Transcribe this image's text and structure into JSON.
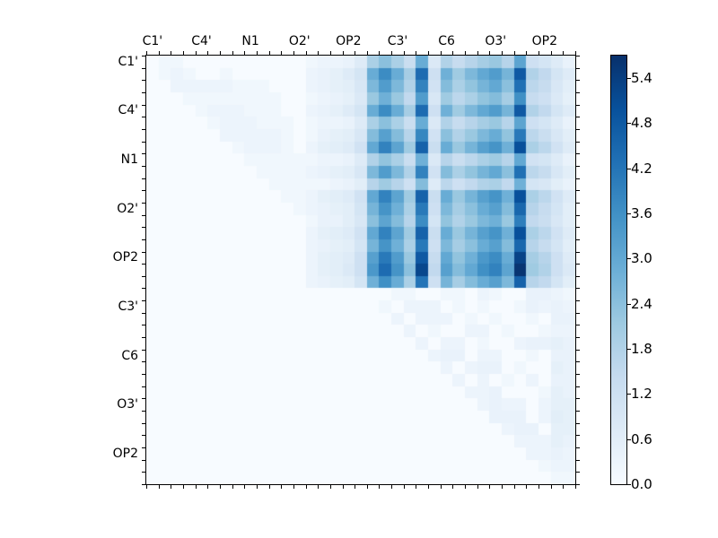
{
  "chart_data": {
    "type": "heatmap",
    "title": "",
    "x_axis_labels": [
      "C1'",
      "C4'",
      "N1",
      "O2'",
      "OP2",
      "C3'",
      "C6",
      "O3'",
      "OP2"
    ],
    "y_axis_labels": [
      "C1'",
      "C4'",
      "N1",
      "O2'",
      "OP2",
      "C3'",
      "C6",
      "O3'",
      "OP2"
    ],
    "label_cell_positions": [
      0,
      4,
      8,
      12,
      16,
      20,
      24,
      28,
      32
    ],
    "grid_size": 35,
    "vmin": 0.0,
    "vmax": 5.7,
    "colormap": "Blues",
    "grid": "off",
    "legend": "colorbar-right",
    "colorbar_ticks": [
      0.0,
      0.6,
      1.2,
      1.8,
      2.4,
      3.0,
      3.6,
      4.2,
      4.8,
      5.4
    ],
    "colorbar_tick_labels": [
      "0.0",
      "0.6",
      "1.2",
      "1.8",
      "2.4",
      "3.0",
      "3.6",
      "4.2",
      "4.8",
      "5.4"
    ],
    "matrix": [
      [
        0,
        0.2,
        0.2,
        0,
        0,
        0,
        0,
        0,
        0,
        0,
        0,
        0,
        0,
        0.2,
        0.3,
        0.3,
        0.4,
        0.7,
        1.9,
        2.4,
        1.9,
        1.3,
        2.9,
        0.8,
        1.8,
        1.4,
        1.7,
        2.0,
        2.2,
        1.7,
        3.1,
        1.2,
        1.0,
        0.7,
        0.4
      ],
      [
        0,
        0.2,
        0.3,
        0.2,
        0,
        0,
        0.2,
        0,
        0,
        0,
        0,
        0,
        0,
        0.3,
        0.4,
        0.5,
        0.7,
        1.0,
        2.9,
        3.7,
        2.9,
        2.0,
        4.4,
        1.2,
        2.8,
        2.1,
        2.6,
        3.0,
        3.3,
        2.7,
        4.8,
        1.8,
        1.5,
        1.0,
        0.7
      ],
      [
        0,
        0,
        0.3,
        0.3,
        0.3,
        0.3,
        0.3,
        0.2,
        0.2,
        0.2,
        0,
        0,
        0,
        0.3,
        0.4,
        0.5,
        0.6,
        0.9,
        2.6,
        3.3,
        2.6,
        1.8,
        3.9,
        1.1,
        2.5,
        1.9,
        2.3,
        2.7,
        3.0,
        2.4,
        4.3,
        1.6,
        1.4,
        0.9,
        0.6
      ],
      [
        0,
        0,
        0,
        0.2,
        0.2,
        0.2,
        0.2,
        0.2,
        0.2,
        0.2,
        0.2,
        0,
        0,
        0.2,
        0.3,
        0.4,
        0.5,
        0.8,
        2.2,
        2.8,
        2.2,
        1.5,
        3.3,
        0.9,
        2.1,
        1.6,
        1.9,
        2.3,
        2.5,
        2.0,
        3.6,
        1.4,
        1.2,
        0.8,
        0.5
      ],
      [
        0,
        0,
        0,
        0,
        0.2,
        0.3,
        0.3,
        0.3,
        0.2,
        0.2,
        0.2,
        0,
        0,
        0.3,
        0.4,
        0.5,
        0.7,
        1.0,
        2.9,
        3.7,
        2.9,
        2.0,
        4.4,
        1.2,
        2.8,
        2.1,
        2.6,
        3.0,
        3.3,
        2.7,
        4.8,
        1.8,
        1.5,
        1.0,
        0.7
      ],
      [
        0,
        0,
        0,
        0,
        0,
        0.2,
        0.3,
        0.3,
        0.3,
        0.2,
        0.2,
        0.2,
        0,
        0.2,
        0.3,
        0.3,
        0.4,
        0.7,
        1.9,
        2.4,
        1.9,
        1.3,
        2.9,
        0.8,
        1.8,
        1.4,
        1.7,
        2.0,
        2.2,
        1.7,
        3.1,
        1.2,
        1.0,
        0.7,
        0.4
      ],
      [
        0,
        0,
        0,
        0,
        0,
        0,
        0.3,
        0.3,
        0.3,
        0.3,
        0.3,
        0.2,
        0,
        0.2,
        0.4,
        0.5,
        0.6,
        0.9,
        2.5,
        3.2,
        2.5,
        1.7,
        3.8,
        1.1,
        2.4,
        1.8,
        2.2,
        2.6,
        2.9,
        2.3,
        4.1,
        1.6,
        1.3,
        0.9,
        0.6
      ],
      [
        0,
        0,
        0,
        0,
        0,
        0,
        0,
        0.2,
        0.3,
        0.3,
        0.3,
        0.2,
        0,
        0.3,
        0.5,
        0.6,
        0.7,
        1.1,
        3.0,
        3.9,
        3.1,
        2.1,
        4.6,
        1.3,
        2.9,
        2.2,
        2.7,
        3.2,
        3.5,
        2.8,
        5.0,
        1.9,
        1.6,
        1.1,
        0.7
      ],
      [
        0,
        0,
        0,
        0,
        0,
        0,
        0,
        0,
        0.2,
        0.2,
        0.2,
        0.2,
        0.2,
        0.2,
        0.3,
        0.3,
        0.4,
        0.7,
        1.8,
        2.3,
        1.9,
        1.3,
        2.8,
        0.8,
        1.7,
        1.3,
        1.6,
        1.9,
        2.1,
        1.7,
        3.0,
        1.1,
        1.0,
        0.7,
        0.4
      ],
      [
        0,
        0,
        0,
        0,
        0,
        0,
        0,
        0,
        0,
        0.2,
        0.2,
        0.2,
        0.2,
        0.3,
        0.4,
        0.5,
        0.6,
        0.9,
        2.6,
        3.3,
        2.6,
        1.8,
        3.9,
        1.1,
        2.5,
        1.9,
        2.3,
        2.7,
        3.0,
        2.4,
        4.3,
        1.6,
        1.4,
        0.9,
        0.6
      ],
      [
        0,
        0,
        0,
        0,
        0,
        0,
        0,
        0,
        0,
        0,
        0.2,
        0.2,
        0.2,
        0.2,
        0.2,
        0.3,
        0.4,
        0.6,
        1.7,
        2.1,
        1.7,
        1.2,
        2.5,
        0.7,
        1.6,
        1.2,
        1.5,
        1.8,
        1.9,
        1.5,
        2.8,
        1.0,
        0.9,
        0.6,
        0.4
      ],
      [
        0,
        0,
        0,
        0,
        0,
        0,
        0,
        0,
        0,
        0,
        0,
        0.2,
        0.2,
        0.3,
        0.5,
        0.6,
        0.7,
        1.1,
        3.0,
        3.9,
        3.1,
        2.1,
        4.6,
        1.3,
        2.9,
        2.2,
        2.7,
        3.2,
        3.5,
        2.8,
        5.0,
        1.9,
        1.6,
        1.1,
        0.7
      ],
      [
        0,
        0,
        0,
        0,
        0,
        0,
        0,
        0,
        0,
        0,
        0,
        0,
        0.2,
        0.3,
        0.4,
        0.5,
        0.6,
        1.0,
        2.7,
        3.5,
        2.8,
        1.9,
        4.1,
        1.2,
        2.6,
        2.0,
        2.4,
        2.9,
        3.2,
        2.5,
        4.5,
        1.7,
        1.4,
        1.0,
        0.6
      ],
      [
        0,
        0,
        0,
        0,
        0,
        0,
        0,
        0,
        0,
        0,
        0,
        0,
        0,
        0.2,
        0.4,
        0.4,
        0.6,
        0.9,
        2.4,
        3.1,
        2.5,
        1.7,
        3.7,
        1.0,
        2.3,
        1.8,
        2.2,
        2.6,
        2.8,
        2.2,
        4.0,
        1.5,
        1.3,
        0.9,
        0.6
      ],
      [
        0,
        0,
        0,
        0,
        0,
        0,
        0,
        0,
        0,
        0,
        0,
        0,
        0,
        0.3,
        0.5,
        0.6,
        0.7,
        1.1,
        3.0,
        3.9,
        3.1,
        2.1,
        4.6,
        1.3,
        2.9,
        2.2,
        2.7,
        3.2,
        3.5,
        2.8,
        5.0,
        1.9,
        1.6,
        1.1,
        0.7
      ],
      [
        0,
        0,
        0,
        0,
        0,
        0,
        0,
        0,
        0,
        0,
        0,
        0,
        0,
        0.3,
        0.4,
        0.5,
        0.6,
        1.0,
        2.7,
        3.5,
        2.8,
        1.9,
        4.1,
        1.2,
        2.6,
        2.0,
        2.4,
        2.9,
        3.2,
        2.5,
        4.5,
        1.7,
        1.4,
        1.0,
        0.6
      ],
      [
        0,
        0,
        0,
        0,
        0,
        0,
        0,
        0,
        0,
        0,
        0,
        0,
        0,
        0.3,
        0.5,
        0.6,
        0.7,
        1.2,
        3.2,
        4.1,
        3.3,
        2.2,
        4.8,
        1.4,
        3.0,
        2.3,
        2.8,
        3.4,
        3.7,
        2.9,
        5.3,
        2.0,
        1.7,
        1.2,
        0.7
      ],
      [
        0,
        0,
        0,
        0,
        0,
        0,
        0,
        0,
        0,
        0,
        0,
        0,
        0,
        0.3,
        0.5,
        0.6,
        0.8,
        1.2,
        3.4,
        4.4,
        3.5,
        2.4,
        5.2,
        1.5,
        3.2,
        2.5,
        3.0,
        3.6,
        3.9,
        3.1,
        5.6,
        2.1,
        1.8,
        1.2,
        0.8
      ],
      [
        0,
        0,
        0,
        0,
        0,
        0,
        0,
        0,
        0,
        0,
        0,
        0,
        0,
        0.3,
        0.4,
        0.5,
        0.6,
        1.0,
        2.8,
        3.6,
        2.9,
        1.9,
        4.2,
        1.2,
        2.7,
        2.0,
        2.5,
        2.9,
        3.2,
        2.6,
        4.6,
        1.7,
        1.5,
        1.0,
        0.6
      ],
      [
        0,
        0,
        0,
        0,
        0,
        0,
        0,
        0,
        0,
        0,
        0,
        0,
        0,
        0,
        0,
        0,
        0,
        0,
        0,
        0,
        0.2,
        0.2,
        0,
        0,
        0.2,
        0.2,
        0,
        0.3,
        0.2,
        0,
        0,
        0.4,
        0.4,
        0.3,
        0.2
      ],
      [
        0,
        0,
        0,
        0,
        0,
        0,
        0,
        0,
        0,
        0,
        0,
        0,
        0,
        0,
        0,
        0,
        0,
        0,
        0,
        0.2,
        0,
        0.3,
        0.3,
        0.3,
        0,
        0.2,
        0,
        0.2,
        0,
        0,
        0.2,
        0.4,
        0.3,
        0.4,
        0.3
      ],
      [
        0,
        0,
        0,
        0,
        0,
        0,
        0,
        0,
        0,
        0,
        0,
        0,
        0,
        0,
        0,
        0,
        0,
        0,
        0,
        0,
        0.3,
        0,
        0.3,
        0.3,
        0.3,
        0,
        0.2,
        0,
        0.2,
        0,
        0,
        0.2,
        0,
        0.4,
        0.4
      ],
      [
        0,
        0,
        0,
        0,
        0,
        0,
        0,
        0,
        0,
        0,
        0,
        0,
        0,
        0,
        0,
        0,
        0,
        0,
        0,
        0,
        0,
        0.3,
        0,
        0.2,
        0,
        0,
        0.3,
        0.3,
        0,
        0.2,
        0,
        0,
        0.2,
        0.3,
        0.3
      ],
      [
        0,
        0,
        0,
        0,
        0,
        0,
        0,
        0,
        0,
        0,
        0,
        0,
        0,
        0,
        0,
        0,
        0,
        0,
        0,
        0,
        0,
        0,
        0.3,
        0,
        0.3,
        0.3,
        0,
        0.2,
        0,
        0,
        0.3,
        0.4,
        0.4,
        0.5,
        0.4
      ],
      [
        0,
        0,
        0,
        0,
        0,
        0,
        0,
        0,
        0,
        0,
        0,
        0,
        0,
        0,
        0,
        0,
        0,
        0,
        0,
        0,
        0,
        0,
        0,
        0.3,
        0.4,
        0.4,
        0,
        0.3,
        0.3,
        0,
        0,
        0.2,
        0,
        0.4,
        0.4
      ],
      [
        0,
        0,
        0,
        0,
        0,
        0,
        0,
        0,
        0,
        0,
        0,
        0,
        0,
        0,
        0,
        0,
        0,
        0,
        0,
        0,
        0,
        0,
        0,
        0,
        0.3,
        0,
        0.3,
        0.4,
        0.4,
        0,
        0.2,
        0,
        0,
        0.5,
        0.4
      ],
      [
        0,
        0,
        0,
        0,
        0,
        0,
        0,
        0,
        0,
        0,
        0,
        0,
        0,
        0,
        0,
        0,
        0,
        0,
        0,
        0,
        0,
        0,
        0,
        0,
        0,
        0.3,
        0,
        0.3,
        0,
        0.2,
        0,
        0.3,
        0,
        0.4,
        0.4
      ],
      [
        0,
        0,
        0,
        0,
        0,
        0,
        0,
        0,
        0,
        0,
        0,
        0,
        0,
        0,
        0,
        0,
        0,
        0,
        0,
        0,
        0,
        0,
        0,
        0,
        0,
        0,
        0.3,
        0.3,
        0.4,
        0,
        0,
        0,
        0.2,
        0.5,
        0.4
      ],
      [
        0,
        0,
        0,
        0,
        0,
        0,
        0,
        0,
        0,
        0,
        0,
        0,
        0,
        0,
        0,
        0,
        0,
        0,
        0,
        0,
        0,
        0,
        0,
        0,
        0,
        0,
        0,
        0.3,
        0.4,
        0.3,
        0.3,
        0,
        0.3,
        0.5,
        0.5
      ],
      [
        0,
        0,
        0,
        0,
        0,
        0,
        0,
        0,
        0,
        0,
        0,
        0,
        0,
        0,
        0,
        0,
        0,
        0,
        0,
        0,
        0,
        0,
        0,
        0,
        0,
        0,
        0,
        0,
        0.4,
        0.4,
        0.4,
        0,
        0.3,
        0.6,
        0.5
      ],
      [
        0,
        0,
        0,
        0,
        0,
        0,
        0,
        0,
        0,
        0,
        0,
        0,
        0,
        0,
        0,
        0,
        0,
        0,
        0,
        0,
        0,
        0,
        0,
        0,
        0,
        0,
        0,
        0,
        0,
        0.3,
        0.4,
        0.4,
        0,
        0.5,
        0.5
      ],
      [
        0,
        0,
        0,
        0,
        0,
        0,
        0,
        0,
        0,
        0,
        0,
        0,
        0,
        0,
        0,
        0,
        0,
        0,
        0,
        0,
        0,
        0,
        0,
        0,
        0,
        0,
        0,
        0,
        0,
        0,
        0.3,
        0.3,
        0.3,
        0.5,
        0.4
      ],
      [
        0,
        0,
        0,
        0,
        0,
        0,
        0,
        0,
        0,
        0,
        0,
        0,
        0,
        0,
        0,
        0,
        0,
        0,
        0,
        0,
        0,
        0,
        0,
        0,
        0,
        0,
        0,
        0,
        0,
        0,
        0,
        0.3,
        0.3,
        0.4,
        0.3
      ],
      [
        0,
        0,
        0,
        0,
        0,
        0,
        0,
        0,
        0,
        0,
        0,
        0,
        0,
        0,
        0,
        0,
        0,
        0,
        0,
        0,
        0,
        0,
        0,
        0,
        0,
        0,
        0,
        0,
        0,
        0,
        0,
        0,
        0.2,
        0.3,
        0.3
      ],
      [
        0,
        0,
        0,
        0,
        0,
        0,
        0,
        0,
        0,
        0,
        0,
        0,
        0,
        0,
        0,
        0,
        0,
        0,
        0,
        0,
        0,
        0,
        0,
        0,
        0,
        0,
        0,
        0,
        0,
        0,
        0,
        0,
        0,
        0.2,
        0.2
      ]
    ]
  },
  "colors": {
    "background": "#ffffff",
    "axis_line": "#000000",
    "cmap_stops": [
      [
        0.0,
        "#f7fbff"
      ],
      [
        0.125,
        "#deebf7"
      ],
      [
        0.25,
        "#c6dbef"
      ],
      [
        0.375,
        "#9ecae1"
      ],
      [
        0.5,
        "#6baed6"
      ],
      [
        0.625,
        "#4292c6"
      ],
      [
        0.75,
        "#2171b5"
      ],
      [
        0.875,
        "#08519c"
      ],
      [
        1.0,
        "#08306b"
      ]
    ]
  }
}
